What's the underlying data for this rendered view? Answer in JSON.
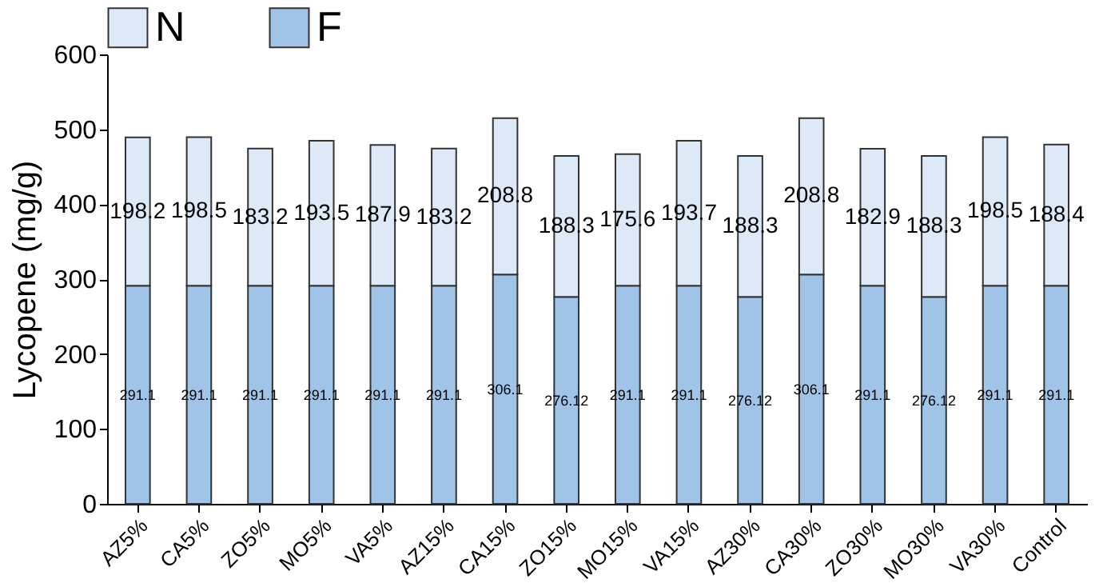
{
  "chart_data": {
    "type": "bar",
    "ylabel": "Lycopene (mg/g)",
    "categories": [
      "AZ5%",
      "CA5%",
      "ZO5%",
      "MO5%",
      "VA5%",
      "AZ15%",
      "CA15%",
      "ZO15%",
      "MO15%",
      "VA15%",
      "AZ30%",
      "CA30%",
      "ZO30%",
      "MO30%",
      "VA30%",
      "Control"
    ],
    "series": [
      {
        "name": "F",
        "color": "#9fc4e8",
        "values": [
          291.1,
          291.1,
          291.1,
          291.1,
          291.1,
          291.1,
          306.1,
          276.12,
          291.1,
          291.1,
          276.12,
          306.1,
          291.1,
          276.12,
          291.1,
          291.1
        ]
      },
      {
        "name": "N",
        "color": "#dde9f6",
        "values": [
          198.2,
          198.5,
          183.2,
          193.5,
          187.9,
          183.2,
          208.8,
          188.3,
          175.6,
          193.7,
          188.3,
          208.8,
          182.9,
          188.3,
          198.5,
          188.4
        ]
      }
    ],
    "stacked": true,
    "data_labels": true,
    "ylim": [
      0,
      600
    ],
    "yticks": [
      0,
      100,
      200,
      300,
      400,
      500,
      600
    ],
    "grid": false,
    "legend": "top"
  }
}
